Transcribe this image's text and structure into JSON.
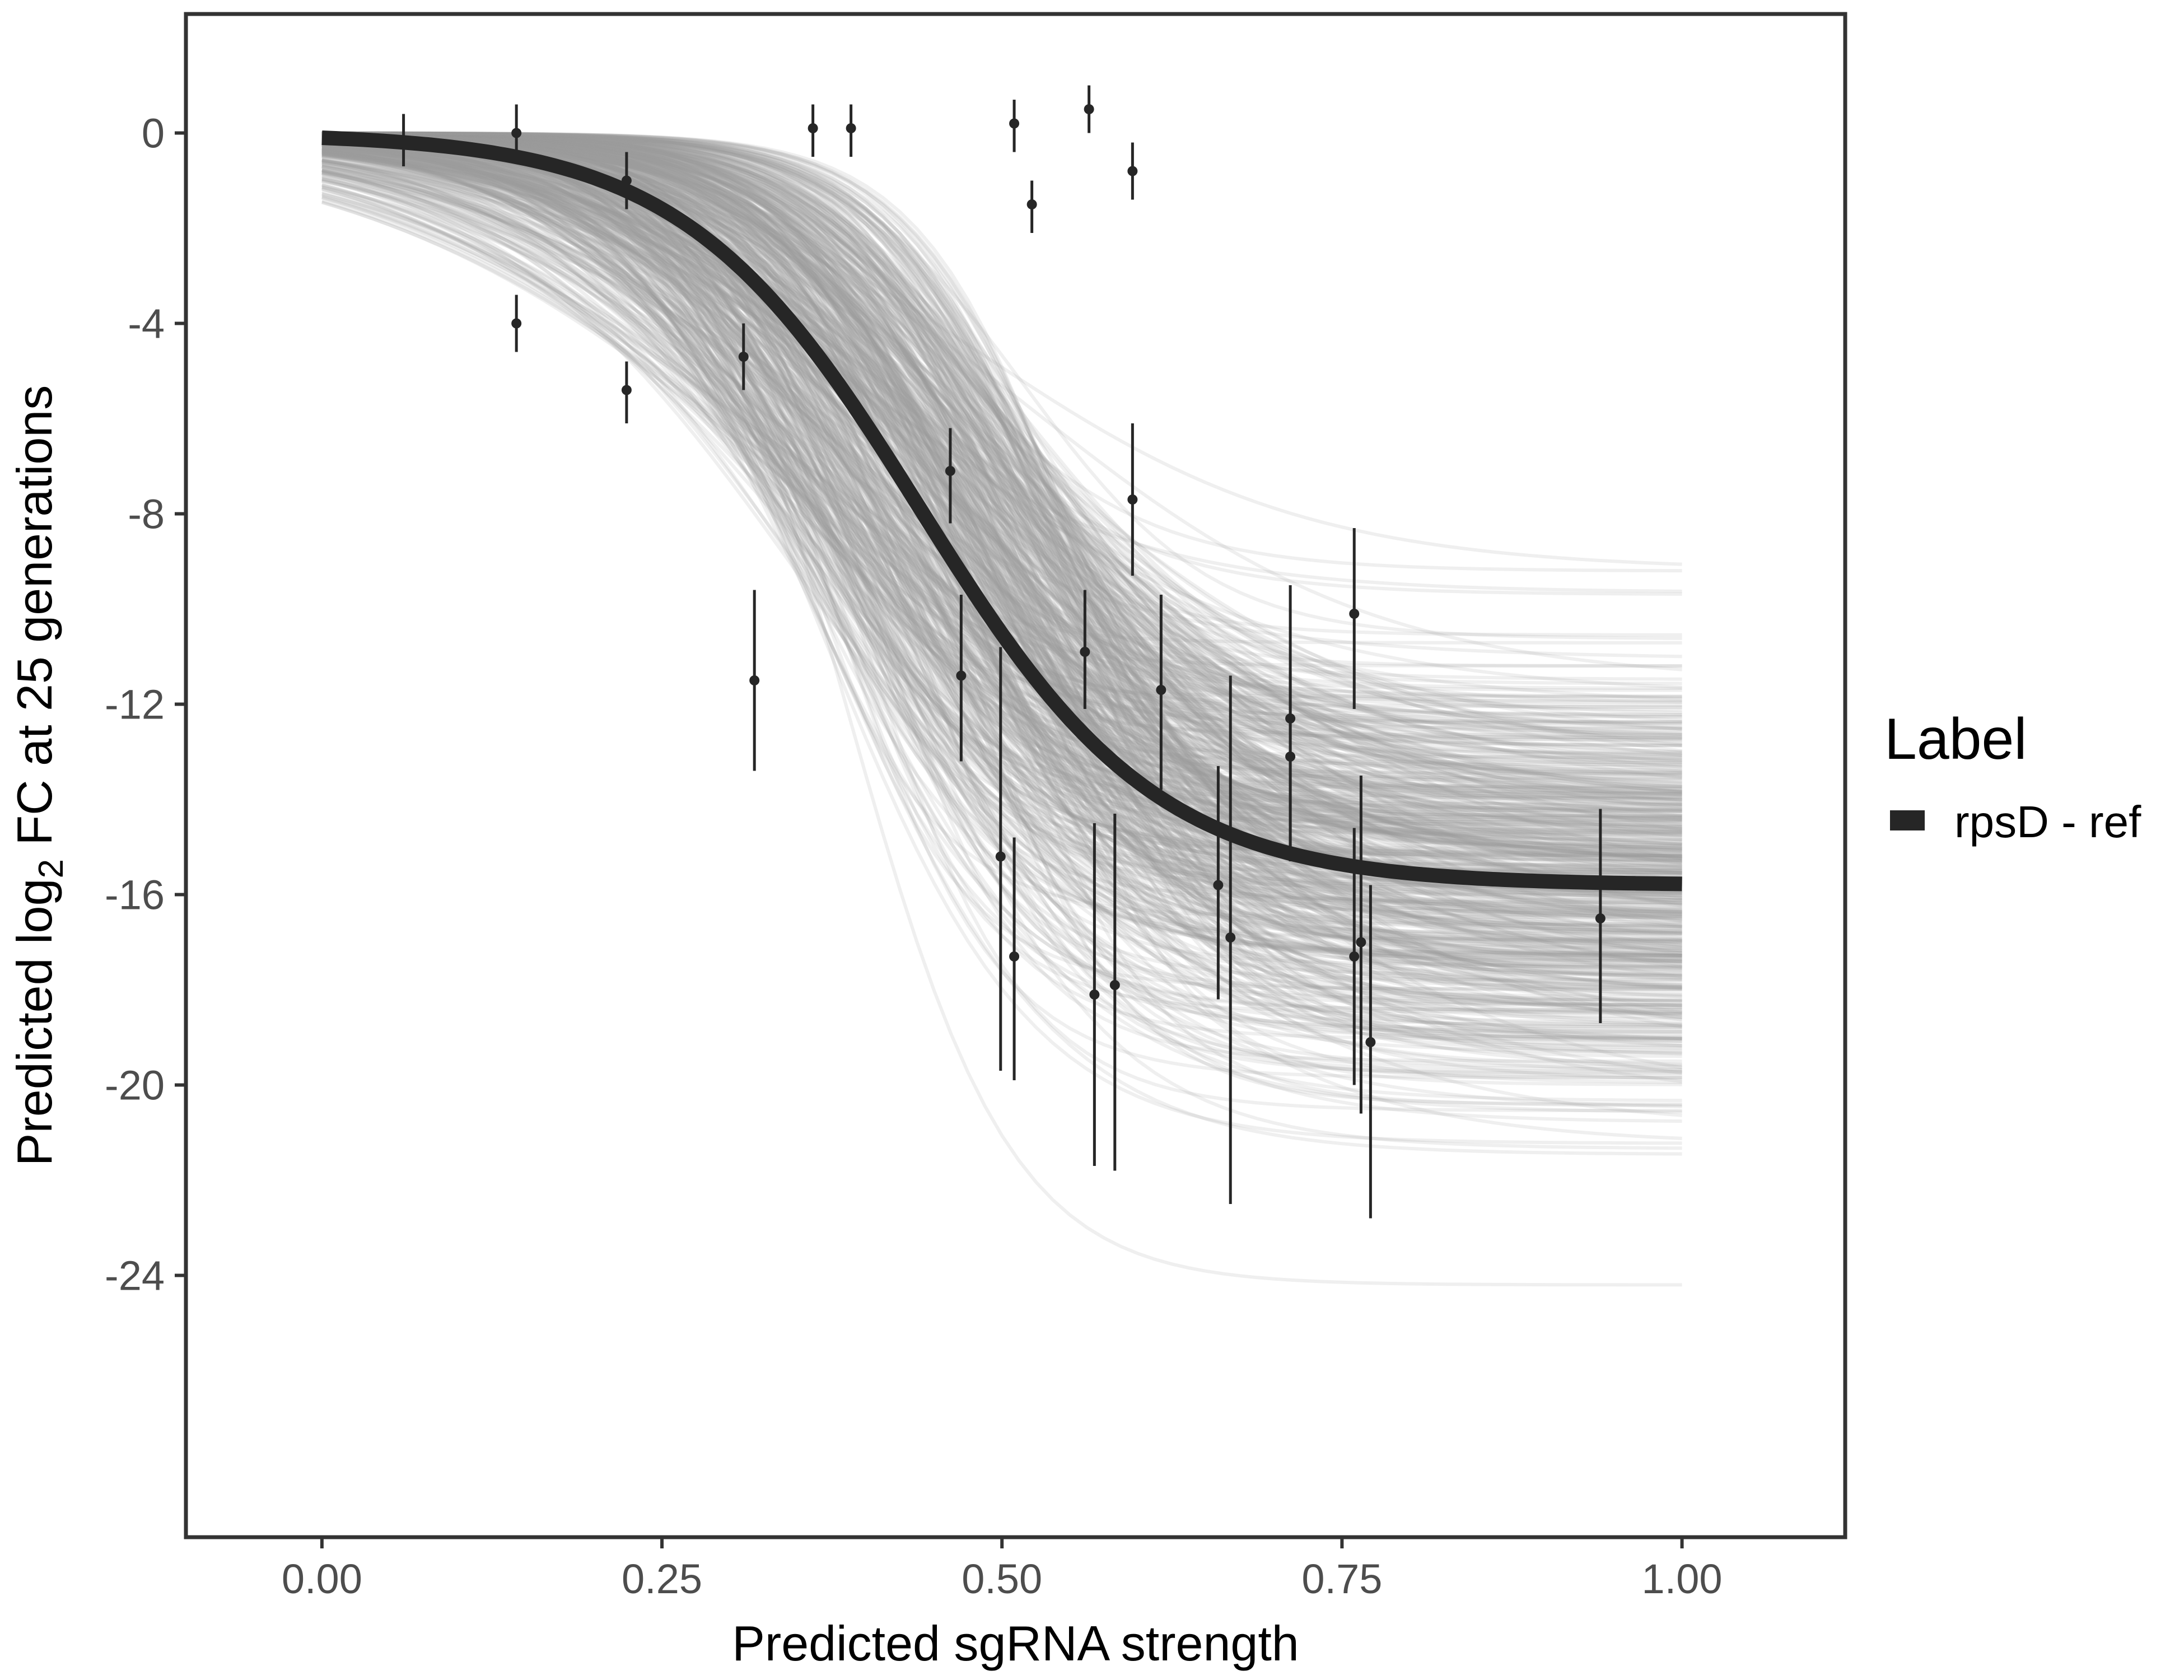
{
  "chart_data": {
    "type": "line",
    "xlabel": "Predicted sgRNA strength",
    "ylabel_parts": {
      "prefix": "Predicted  log",
      "subscript": "2",
      "suffix": " FC at 25 generations"
    },
    "xlim": [
      -0.1,
      1.12
    ],
    "ylim": [
      -29.5,
      2.5
    ],
    "x_ticks": [
      0,
      0.25,
      0.5,
      0.75,
      1
    ],
    "x_tick_labels": [
      "0.00",
      "0.25",
      "0.50",
      "0.75",
      "1.00"
    ],
    "y_ticks": [
      0,
      -4,
      -8,
      -12,
      -16,
      -20,
      -24
    ],
    "y_tick_labels": [
      "0",
      "-4",
      "-8",
      "-12",
      "-16",
      "-20",
      "-24"
    ],
    "grid": false,
    "legend": {
      "title": "Label",
      "placement": "right",
      "entries": [
        {
          "label": "rpsD - ref",
          "color": "#262626"
        }
      ]
    },
    "main_curve": {
      "series_label": "rpsD - ref",
      "color": "#262626",
      "model": "logistic",
      "upper": 0,
      "lower": -15.8,
      "midpoint": 0.44,
      "steepness": 11.5
    },
    "posterior_draws": {
      "color": "#999999",
      "count": 600,
      "upper": 0,
      "lower_range": [
        -24.2,
        -9.0
      ],
      "midpoint_range": [
        0.32,
        0.56
      ],
      "steepness_range": [
        6,
        18
      ]
    },
    "observations": [
      {
        "x": 0.06,
        "y": -0.2,
        "ymin": -0.7,
        "ymax": 0.4
      },
      {
        "x": 0.143,
        "y": 0.0,
        "ymin": -0.5,
        "ymax": 0.6
      },
      {
        "x": 0.143,
        "y": -4.0,
        "ymin": -4.6,
        "ymax": -3.4
      },
      {
        "x": 0.224,
        "y": -1.0,
        "ymin": -1.6,
        "ymax": -0.4
      },
      {
        "x": 0.224,
        "y": -5.4,
        "ymin": -6.1,
        "ymax": -4.8
      },
      {
        "x": 0.31,
        "y": -4.7,
        "ymin": -5.4,
        "ymax": -4.0
      },
      {
        "x": 0.318,
        "y": -11.5,
        "ymin": -13.4,
        "ymax": -9.6
      },
      {
        "x": 0.361,
        "y": 0.1,
        "ymin": -0.5,
        "ymax": 0.6
      },
      {
        "x": 0.389,
        "y": 0.1,
        "ymin": -0.5,
        "ymax": 0.6
      },
      {
        "x": 0.462,
        "y": -7.1,
        "ymin": -8.2,
        "ymax": -6.2
      },
      {
        "x": 0.47,
        "y": -11.4,
        "ymin": -13.2,
        "ymax": -9.7
      },
      {
        "x": 0.499,
        "y": -15.2,
        "ymin": -19.7,
        "ymax": -10.8
      },
      {
        "x": 0.509,
        "y": 0.2,
        "ymin": -0.4,
        "ymax": 0.7
      },
      {
        "x": 0.509,
        "y": -17.3,
        "ymin": -19.9,
        "ymax": -14.8
      },
      {
        "x": 0.522,
        "y": -1.5,
        "ymin": -2.1,
        "ymax": -1.0
      },
      {
        "x": 0.561,
        "y": -10.9,
        "ymin": -12.1,
        "ymax": -9.6
      },
      {
        "x": 0.564,
        "y": 0.5,
        "ymin": 0.0,
        "ymax": 1.0
      },
      {
        "x": 0.568,
        "y": -18.1,
        "ymin": -21.7,
        "ymax": -14.5
      },
      {
        "x": 0.583,
        "y": -17.9,
        "ymin": -21.8,
        "ymax": -14.3
      },
      {
        "x": 0.596,
        "y": -7.7,
        "ymin": -9.3,
        "ymax": -6.1
      },
      {
        "x": 0.596,
        "y": -0.8,
        "ymin": -1.4,
        "ymax": -0.2
      },
      {
        "x": 0.617,
        "y": -11.7,
        "ymin": -13.8,
        "ymax": -9.7
      },
      {
        "x": 0.659,
        "y": -15.8,
        "ymin": -18.2,
        "ymax": -13.3
      },
      {
        "x": 0.668,
        "y": -16.9,
        "ymin": -22.5,
        "ymax": -11.4
      },
      {
        "x": 0.712,
        "y": -12.3,
        "ymin": -15.3,
        "ymax": -9.5
      },
      {
        "x": 0.712,
        "y": -13.1,
        "ymin": -15.0,
        "ymax": -11.3
      },
      {
        "x": 0.759,
        "y": -10.1,
        "ymin": -12.1,
        "ymax": -8.3
      },
      {
        "x": 0.759,
        "y": -17.3,
        "ymin": -20.0,
        "ymax": -14.6
      },
      {
        "x": 0.764,
        "y": -17.0,
        "ymin": -20.6,
        "ymax": -13.5
      },
      {
        "x": 0.771,
        "y": -19.1,
        "ymin": -22.8,
        "ymax": -15.8
      },
      {
        "x": 0.94,
        "y": -16.5,
        "ymin": -18.7,
        "ymax": -14.2
      }
    ],
    "point_color": "#262626"
  }
}
